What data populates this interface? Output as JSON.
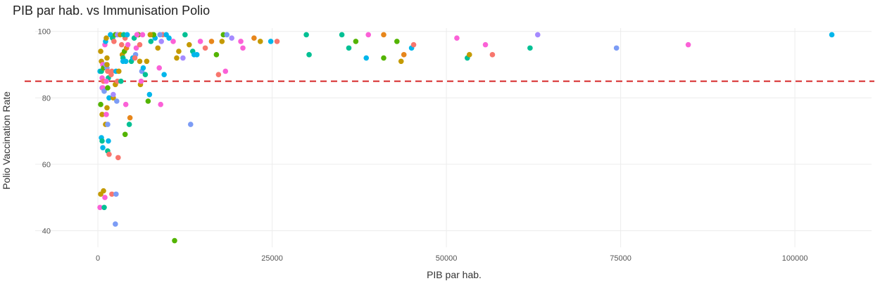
{
  "chart_data": {
    "type": "scatter",
    "title": "PIB par hab. vs Immunisation Polio",
    "xlabel": "PIB par hab.",
    "ylabel": "Polio Vaccination Rate",
    "xlim": [
      -9000,
      111000
    ],
    "ylim": [
      35,
      101
    ],
    "x_ticks": [
      0,
      25000,
      50000,
      75000,
      100000
    ],
    "x_tick_labels": [
      "0",
      "25000",
      "50000",
      "75000",
      "100000"
    ],
    "y_ticks": [
      40,
      60,
      80,
      100
    ],
    "y_tick_labels": [
      "40",
      "60",
      "80",
      "100"
    ],
    "grid": true,
    "reference_line": {
      "y": 85,
      "color": "#d62728",
      "style": "dashed"
    },
    "palette": [
      "#f8766d",
      "#c49a00",
      "#53b400",
      "#00c094",
      "#00b6eb",
      "#a58aff",
      "#fb61d7",
      "#7c9cf5",
      "#e7861b",
      "#2db34a"
    ],
    "points": [
      [
        400,
        94,
        1
      ],
      [
        300,
        88,
        4
      ],
      [
        500,
        88,
        3
      ],
      [
        600,
        83,
        5
      ],
      [
        500,
        91,
        1
      ],
      [
        700,
        90,
        6
      ],
      [
        800,
        89,
        2
      ],
      [
        400,
        78,
        2
      ],
      [
        600,
        75,
        1
      ],
      [
        500,
        68,
        4
      ],
      [
        600,
        67,
        3
      ],
      [
        700,
        65,
        4
      ],
      [
        400,
        51,
        1
      ],
      [
        800,
        52,
        1
      ],
      [
        300,
        47,
        6
      ],
      [
        900,
        47,
        3
      ],
      [
        600,
        86,
        6
      ],
      [
        800,
        85,
        0
      ],
      [
        700,
        83,
        6
      ],
      [
        900,
        82,
        7
      ],
      [
        1000,
        96,
        6
      ],
      [
        1100,
        97,
        4
      ],
      [
        1200,
        98,
        1
      ],
      [
        1300,
        92,
        1
      ],
      [
        1100,
        90,
        5
      ],
      [
        1300,
        89,
        7
      ],
      [
        1400,
        88,
        0
      ],
      [
        1500,
        86,
        3
      ],
      [
        1200,
        85,
        6
      ],
      [
        1400,
        83,
        2
      ],
      [
        1600,
        80,
        4
      ],
      [
        1300,
        77,
        1
      ],
      [
        1200,
        75,
        6
      ],
      [
        1100,
        72,
        1
      ],
      [
        1400,
        72,
        7
      ],
      [
        1500,
        67,
        4
      ],
      [
        1400,
        64,
        3
      ],
      [
        1600,
        63,
        0
      ],
      [
        1000,
        50,
        6
      ],
      [
        1300,
        90,
        1
      ],
      [
        1800,
        99,
        4
      ],
      [
        2100,
        98,
        3
      ],
      [
        2300,
        97,
        0
      ],
      [
        2500,
        99,
        2
      ],
      [
        2800,
        99,
        5
      ],
      [
        2000,
        88,
        0
      ],
      [
        2200,
        80,
        1
      ],
      [
        2500,
        84,
        1
      ],
      [
        2700,
        79,
        7
      ],
      [
        2600,
        88,
        4
      ],
      [
        2000,
        51,
        0
      ],
      [
        2600,
        51,
        7
      ],
      [
        2500,
        42,
        7
      ],
      [
        2900,
        62,
        0
      ],
      [
        1900,
        87,
        0
      ],
      [
        2200,
        81,
        5
      ],
      [
        2800,
        85,
        0
      ],
      [
        3000,
        88,
        1
      ],
      [
        3200,
        99,
        1
      ],
      [
        3400,
        96,
        0
      ],
      [
        3500,
        93,
        1
      ],
      [
        3600,
        92,
        3
      ],
      [
        3800,
        94,
        2
      ],
      [
        4000,
        91,
        4
      ],
      [
        3900,
        98,
        0
      ],
      [
        4100,
        95,
        8
      ],
      [
        4300,
        96,
        6
      ],
      [
        3700,
        99,
        3
      ],
      [
        4200,
        99,
        4
      ],
      [
        4000,
        78,
        6
      ],
      [
        3900,
        69,
        2
      ],
      [
        4500,
        72,
        3
      ],
      [
        4600,
        74,
        8
      ],
      [
        3300,
        85,
        3
      ],
      [
        3600,
        91,
        4
      ],
      [
        4800,
        91,
        3
      ],
      [
        5000,
        92,
        4
      ],
      [
        5200,
        98,
        3
      ],
      [
        5400,
        93,
        7
      ],
      [
        5500,
        95,
        6
      ],
      [
        5700,
        99,
        0
      ],
      [
        5800,
        99,
        2
      ],
      [
        6000,
        91,
        1
      ],
      [
        6100,
        84,
        1
      ],
      [
        6200,
        85,
        6
      ],
      [
        6300,
        88,
        7
      ],
      [
        6500,
        89,
        4
      ],
      [
        5300,
        92,
        0
      ],
      [
        5600,
        99,
        6
      ],
      [
        6000,
        96,
        0
      ],
      [
        6400,
        99,
        6
      ],
      [
        6800,
        87,
        3
      ],
      [
        7000,
        91,
        1
      ],
      [
        7200,
        79,
        2
      ],
      [
        7400,
        81,
        4
      ],
      [
        7600,
        97,
        3
      ],
      [
        7800,
        99,
        8
      ],
      [
        8200,
        98,
        4
      ],
      [
        8600,
        95,
        1
      ],
      [
        8800,
        89,
        6
      ],
      [
        9000,
        78,
        6
      ],
      [
        9100,
        97,
        5
      ],
      [
        9300,
        99,
        0
      ],
      [
        9500,
        87,
        4
      ],
      [
        9800,
        99,
        4
      ],
      [
        8000,
        99,
        2
      ],
      [
        7500,
        99,
        1
      ],
      [
        8900,
        99,
        7
      ],
      [
        10200,
        98,
        4
      ],
      [
        10800,
        97,
        6
      ],
      [
        11000,
        37,
        2
      ],
      [
        11300,
        92,
        1
      ],
      [
        11600,
        94,
        1
      ],
      [
        12200,
        92,
        5
      ],
      [
        12500,
        99,
        3
      ],
      [
        13100,
        96,
        1
      ],
      [
        13300,
        72,
        7
      ],
      [
        13600,
        94,
        3
      ],
      [
        13800,
        93,
        4
      ],
      [
        14200,
        93,
        4
      ],
      [
        14700,
        97,
        6
      ],
      [
        15400,
        95,
        0
      ],
      [
        16300,
        97,
        8
      ],
      [
        17000,
        93,
        2
      ],
      [
        17300,
        87,
        0
      ],
      [
        17800,
        97,
        1
      ],
      [
        18000,
        99,
        2
      ],
      [
        18300,
        88,
        6
      ],
      [
        18500,
        99,
        7
      ],
      [
        19200,
        98,
        5
      ],
      [
        20500,
        97,
        6
      ],
      [
        20800,
        95,
        6
      ],
      [
        22400,
        98,
        8
      ],
      [
        23300,
        97,
        1
      ],
      [
        24800,
        97,
        4
      ],
      [
        25700,
        97,
        0
      ],
      [
        29900,
        99,
        3
      ],
      [
        30300,
        93,
        3
      ],
      [
        35000,
        99,
        3
      ],
      [
        36000,
        95,
        3
      ],
      [
        37000,
        97,
        2
      ],
      [
        38500,
        92,
        4
      ],
      [
        38800,
        99,
        6
      ],
      [
        41000,
        92,
        2
      ],
      [
        41000,
        99,
        8
      ],
      [
        43500,
        91,
        1
      ],
      [
        43900,
        93,
        8
      ],
      [
        45000,
        95,
        4
      ],
      [
        45300,
        96,
        0
      ],
      [
        42900,
        97,
        2
      ],
      [
        51500,
        98,
        6
      ],
      [
        53000,
        92,
        3
      ],
      [
        53300,
        93,
        1
      ],
      [
        55600,
        96,
        6
      ],
      [
        56600,
        93,
        0
      ],
      [
        62000,
        95,
        3
      ],
      [
        63100,
        99,
        5
      ],
      [
        74400,
        95,
        7
      ],
      [
        84700,
        96,
        6
      ],
      [
        105300,
        99,
        4
      ]
    ]
  }
}
